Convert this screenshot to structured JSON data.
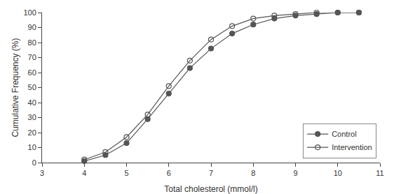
{
  "chart_data": {
    "type": "line",
    "xlabel": "Total cholesterol (mmol/l)",
    "ylabel": "Cumulative Frequency (%)",
    "x": [
      4.0,
      4.5,
      5.0,
      5.5,
      6.0,
      6.5,
      7.0,
      7.5,
      8.0,
      8.5,
      9.0,
      9.5,
      10.0,
      10.5
    ],
    "series": [
      {
        "name": "Control",
        "color": "#555555",
        "marker": "circle",
        "values": [
          1,
          5,
          13,
          29,
          46,
          63,
          76,
          86,
          92,
          96,
          98,
          99,
          100,
          100
        ]
      },
      {
        "name": "Intervention",
        "color": "#555555",
        "marker": "circle-open",
        "values": [
          2,
          7,
          17,
          32,
          51,
          68,
          82,
          91,
          96,
          98,
          99,
          100,
          100,
          100
        ]
      }
    ],
    "xlim": [
      3,
      11
    ],
    "ylim": [
      0,
      100
    ],
    "xticks": [
      3,
      4,
      5,
      6,
      7,
      8,
      9,
      10,
      11
    ],
    "yticks": [
      0,
      10,
      20,
      30,
      40,
      50,
      60,
      70,
      80,
      90,
      100
    ],
    "grid": false,
    "legend": "lower right"
  }
}
